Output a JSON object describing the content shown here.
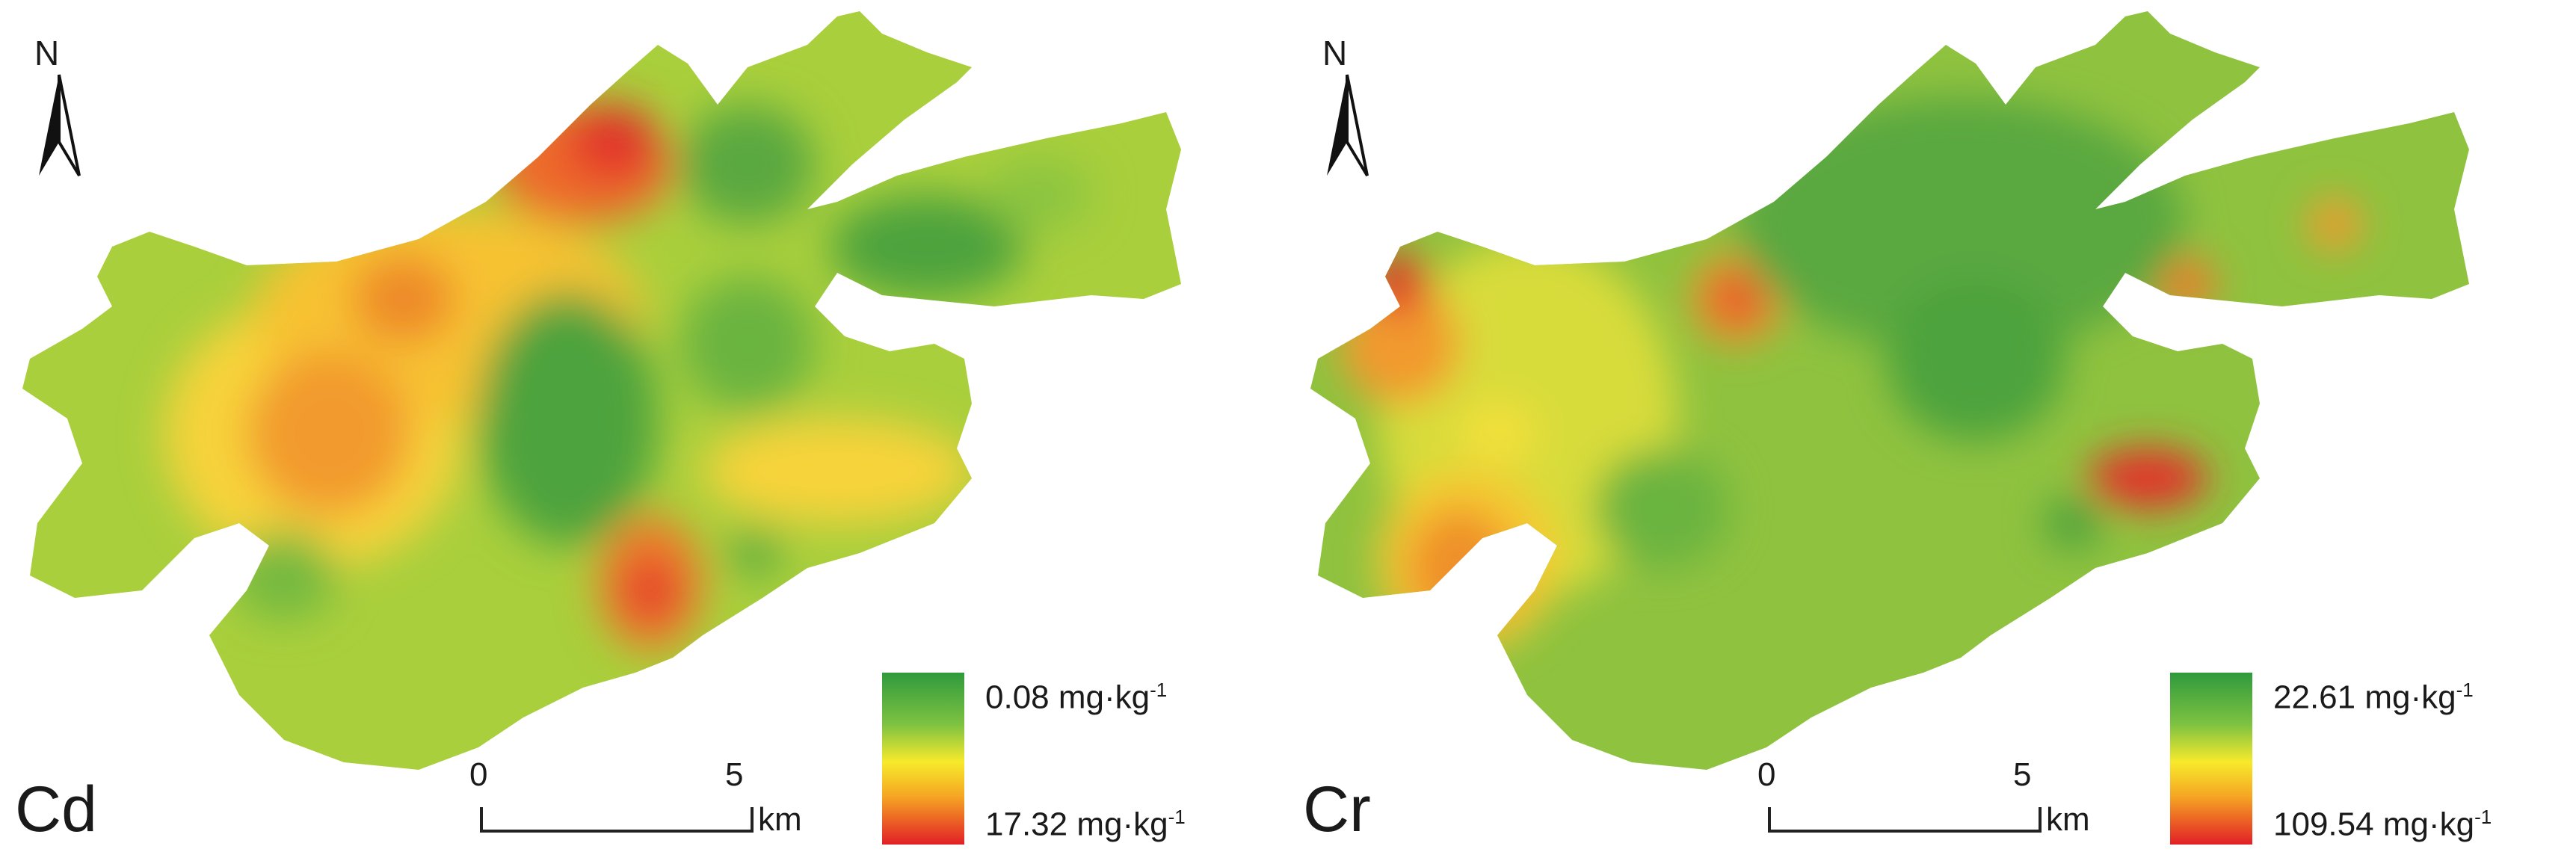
{
  "panels": [
    {
      "element": "Cd",
      "north_label": "N",
      "scale": {
        "zero": "0",
        "five": "5",
        "unit": "km"
      },
      "legend": {
        "top_value": "0.08 mg·kg",
        "bottom_value": "17.32 mg·kg",
        "exponent": "-1",
        "colors": [
          "#2f9a3c",
          "#7dc242",
          "#f7ea2b",
          "#f5a623",
          "#e21f26"
        ]
      }
    },
    {
      "element": "Cr",
      "north_label": "N",
      "scale": {
        "zero": "0",
        "five": "5",
        "unit": "km"
      },
      "legend": {
        "top_value": "22.61 mg·kg",
        "bottom_value": "109.54 mg·kg",
        "exponent": "-1",
        "colors": [
          "#2f9a3c",
          "#7dc242",
          "#f7ea2b",
          "#f5a623",
          "#e21f26"
        ]
      }
    }
  ]
}
